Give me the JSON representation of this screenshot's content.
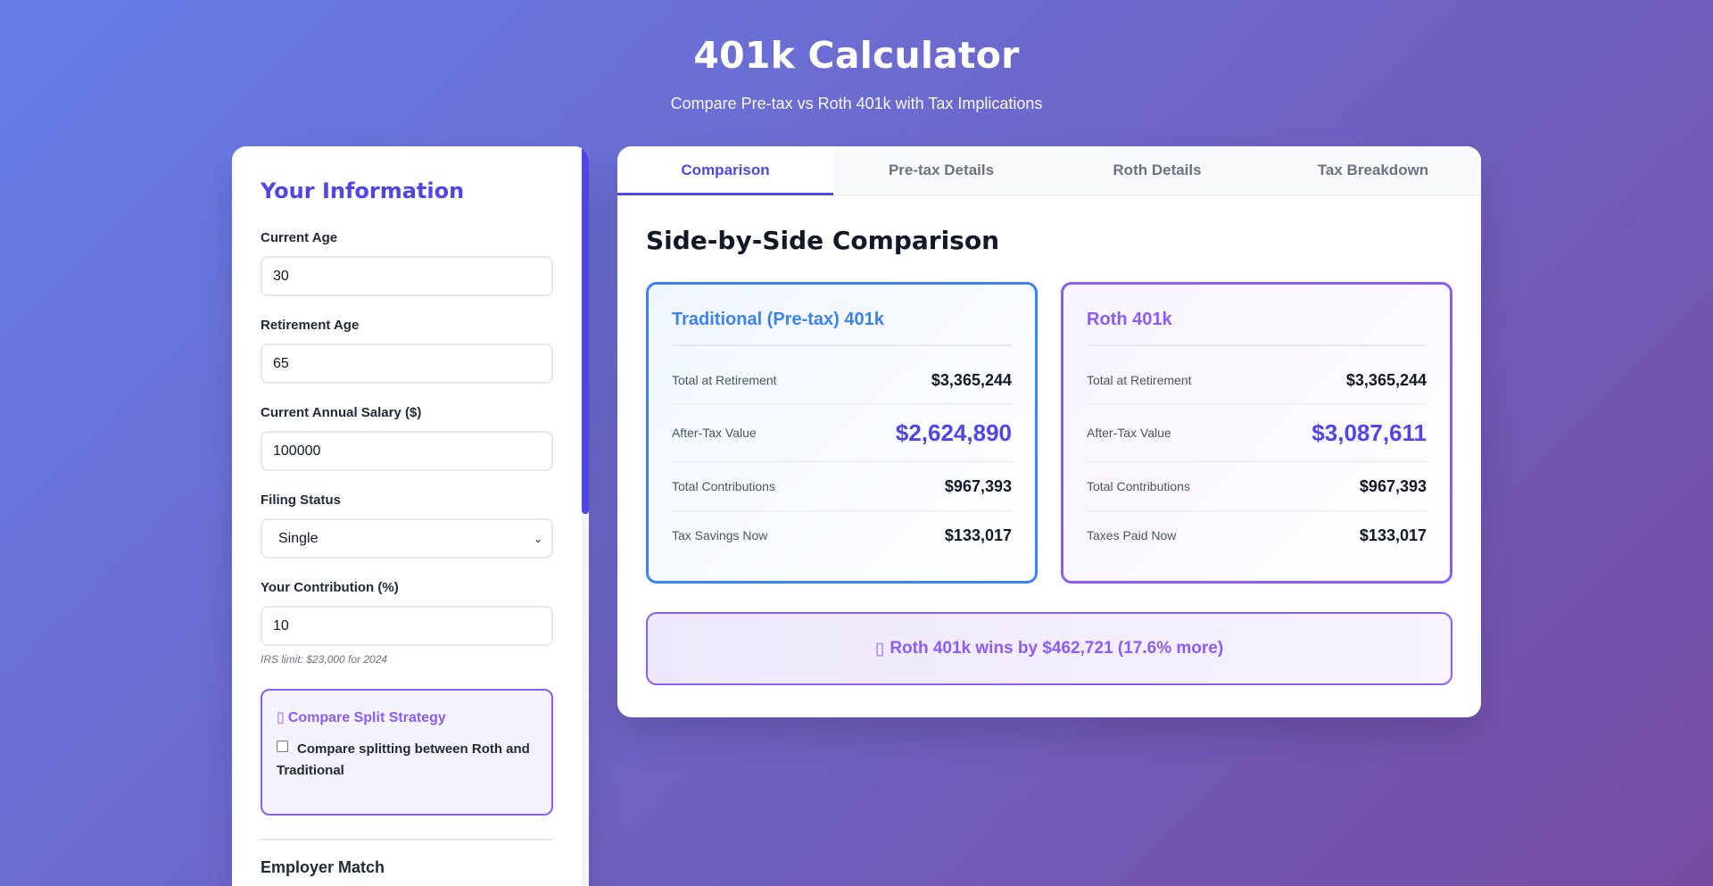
{
  "header": {
    "title": "401k Calculator",
    "subtitle": "Compare Pre-tax vs Roth 401k with Tax Implications"
  },
  "sidebar": {
    "heading": "Your Information",
    "fields": {
      "current_age": {
        "label": "Current Age",
        "value": "30"
      },
      "retirement_age": {
        "label": "Retirement Age",
        "value": "65"
      },
      "salary": {
        "label": "Current Annual Salary ($)",
        "value": "100000"
      },
      "filing_status": {
        "label": "Filing Status",
        "value": "Single"
      },
      "contribution": {
        "label": "Your Contribution (%)",
        "value": "10",
        "hint": "IRS limit: $23,000 for 2024"
      }
    },
    "split_strategy": {
      "title": "Compare Split Strategy",
      "checkbox_label": "Compare splitting between Roth and Traditional",
      "checked": false
    },
    "employer_match_title": "Employer Match"
  },
  "tabs": [
    {
      "label": "Comparison",
      "active": true
    },
    {
      "label": "Pre-tax Details",
      "active": false
    },
    {
      "label": "Roth Details",
      "active": false
    },
    {
      "label": "Tax Breakdown",
      "active": false
    }
  ],
  "main": {
    "section_title": "Side-by-Side Comparison",
    "traditional": {
      "title": "Traditional (Pre-tax) 401k",
      "rows": [
        {
          "label": "Total at Retirement",
          "value": "$3,365,244"
        },
        {
          "label": "After-Tax Value",
          "value": "$2,624,890"
        },
        {
          "label": "Total Contributions",
          "value": "$967,393"
        },
        {
          "label": "Tax Savings Now",
          "value": "$133,017"
        }
      ]
    },
    "roth": {
      "title": "Roth 401k",
      "rows": [
        {
          "label": "Total at Retirement",
          "value": "$3,365,244"
        },
        {
          "label": "After-Tax Value",
          "value": "$3,087,611"
        },
        {
          "label": "Total Contributions",
          "value": "$967,393"
        },
        {
          "label": "Taxes Paid Now",
          "value": "$133,017"
        }
      ]
    },
    "winner_text": "Roth 401k wins by $462,721 (17.6% more)"
  },
  "colors": {
    "accent": "#4f46e5",
    "traditional": "#3b82f6",
    "roth": "#8b5cf6"
  }
}
